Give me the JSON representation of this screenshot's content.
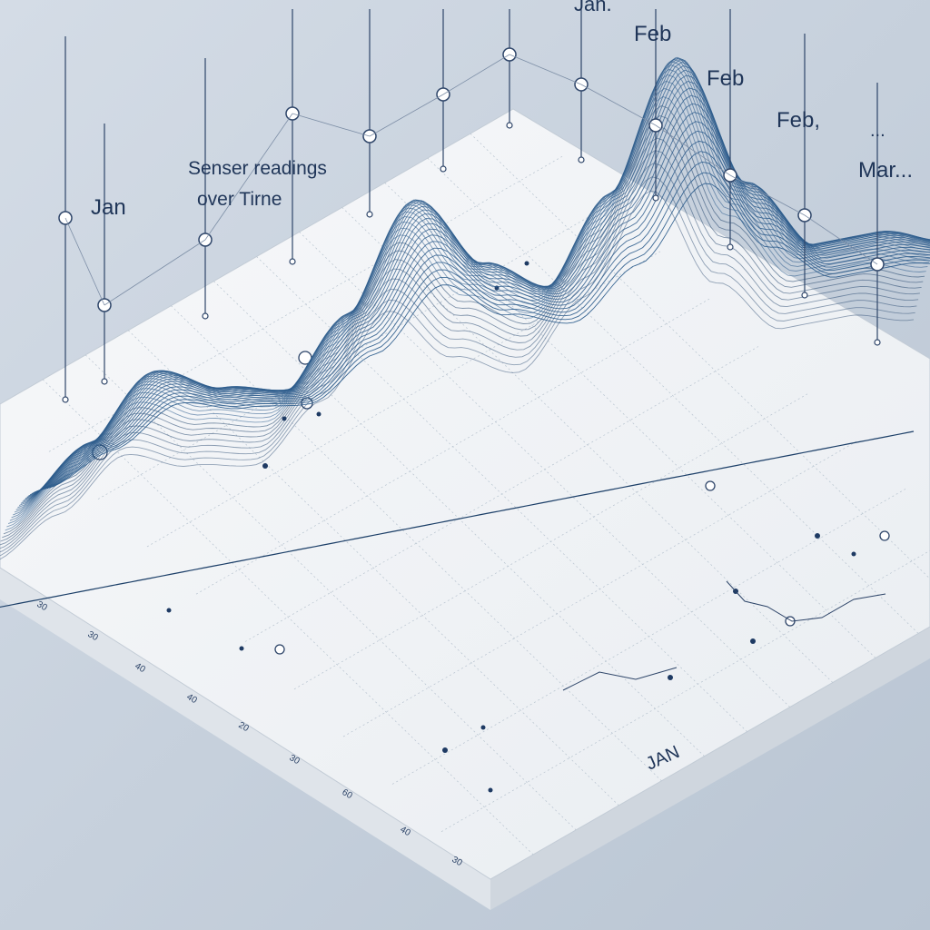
{
  "chart_data": {
    "type": "area",
    "title": "Senser readings over Tirne",
    "months": [
      "Jan",
      "Feb",
      "Feb",
      "Feb,",
      "...",
      "Mar..."
    ],
    "stray_labels": [
      "Jan.",
      "Jan",
      "JAN"
    ],
    "series": [
      {
        "values": [
          0.2,
          0.35,
          0.55,
          0.45,
          0.4,
          0.62,
          0.95,
          0.7,
          0.58,
          0.85,
          1.25,
          0.8,
          0.55,
          0.55,
          0.48
        ]
      }
    ],
    "axis_tick_labels": [
      "30",
      "30",
      "40",
      "40",
      "20",
      "30",
      "60",
      "40",
      "30"
    ],
    "colors": {
      "surface_line": "#2d5c8c",
      "surface_dark": "#1c3f68",
      "grid": "#b7c3cf",
      "board": "#f4f6f8",
      "background": "#c9d3df"
    }
  }
}
